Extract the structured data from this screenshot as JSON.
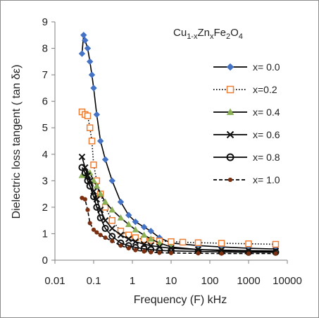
{
  "chart_data": {
    "type": "scatter",
    "xlabel": "Frequency (F) kHz",
    "ylabel": "Dielectric  loss tangent  ( tan δε)",
    "annotation": {
      "base1": "Cu",
      "sub1": "1-x",
      "base2": "Zn",
      "sub2": "x",
      "base3": "Fe",
      "sub3": "2",
      "base4": "O",
      "sub4": "4"
    },
    "x_scale": "log",
    "xlim": [
      0.01,
      10000
    ],
    "ylim": [
      0,
      9
    ],
    "x_ticks": [
      "0.01",
      "0.1",
      "1",
      "10",
      "100",
      "1000",
      "10000"
    ],
    "y_ticks": [
      "0",
      "1",
      "2",
      "3",
      "4",
      "5",
      "6",
      "7",
      "8",
      "9"
    ],
    "grid": false,
    "legend_position": "right",
    "series": [
      {
        "name": "x= 0.0",
        "color": "#4472C4",
        "marker": "diamond",
        "line": "solid",
        "line_color": "#000000",
        "x": [
          0.05,
          0.055,
          0.06,
          0.07,
          0.08,
          0.09,
          0.1,
          0.12,
          0.15,
          0.2,
          0.3,
          0.5,
          0.8,
          1.2,
          2,
          3,
          5,
          10,
          50,
          200,
          1000,
          5000
        ],
        "y": [
          7.8,
          8.5,
          8.3,
          8.0,
          7.5,
          7.0,
          6.5,
          5.5,
          4.5,
          3.8,
          3.0,
          2.2,
          1.7,
          1.45,
          1.25,
          1.1,
          0.85,
          0.65,
          0.55,
          0.5,
          0.45,
          0.42
        ]
      },
      {
        "name": "x=0.2",
        "color": "#ED7D31",
        "marker": "square-open",
        "line": "dotted",
        "line_color": "#000000",
        "x": [
          0.05,
          0.06,
          0.07,
          0.08,
          0.09,
          0.1,
          0.12,
          0.15,
          0.2,
          0.3,
          0.5,
          0.8,
          1.2,
          2,
          3,
          5,
          10,
          20,
          50,
          200,
          1000,
          5000
        ],
        "y": [
          5.6,
          5.5,
          5.45,
          5.0,
          4.5,
          3.6,
          3.0,
          2.5,
          2.0,
          1.5,
          1.1,
          0.95,
          0.85,
          0.78,
          0.75,
          0.72,
          0.7,
          0.68,
          0.66,
          0.64,
          0.62,
          0.6
        ]
      },
      {
        "name": "x= 0.4",
        "color": "#8BB055",
        "marker": "triangle",
        "line": "solid",
        "line_color": "#000000",
        "x": [
          0.05,
          0.06,
          0.07,
          0.08,
          0.1,
          0.12,
          0.15,
          0.2,
          0.3,
          0.5,
          0.8,
          1.2,
          2,
          3,
          5,
          10,
          50,
          200,
          1000,
          5000
        ],
        "y": [
          3.2,
          3.2,
          3.3,
          3.3,
          3.0,
          2.8,
          2.5,
          2.2,
          1.9,
          1.6,
          1.35,
          1.15,
          0.95,
          0.8,
          0.65,
          0.5,
          0.4,
          0.36,
          0.34,
          0.32
        ]
      },
      {
        "name": "x= 0.6",
        "color": "#111111",
        "marker": "x",
        "line": "solid",
        "line_color": "#000000",
        "x": [
          0.05,
          0.06,
          0.07,
          0.08,
          0.1,
          0.12,
          0.15,
          0.2,
          0.3,
          0.5,
          0.8,
          1.2,
          2,
          3,
          5,
          10,
          50,
          200,
          1000,
          5000
        ],
        "y": [
          3.9,
          3.5,
          3.2,
          3.0,
          2.6,
          2.3,
          1.9,
          1.5,
          1.2,
          0.95,
          0.8,
          0.7,
          0.6,
          0.55,
          0.5,
          0.45,
          0.4,
          0.38,
          0.36,
          0.35
        ]
      },
      {
        "name": "x= 0.8",
        "color": "#111111",
        "marker": "circle-open",
        "line": "solid",
        "line_color": "#000000",
        "x": [
          0.05,
          0.06,
          0.07,
          0.08,
          0.1,
          0.12,
          0.15,
          0.2,
          0.3,
          0.5,
          0.8,
          1.2,
          2,
          3,
          5,
          10,
          50,
          200,
          1000,
          5000
        ],
        "y": [
          3.5,
          3.3,
          3.0,
          2.8,
          2.4,
          2.0,
          1.6,
          1.2,
          0.9,
          0.65,
          0.55,
          0.48,
          0.43,
          0.4,
          0.37,
          0.35,
          0.33,
          0.31,
          0.3,
          0.3
        ]
      },
      {
        "name": "x= 1.0",
        "color": "#7A3010",
        "marker": "dot",
        "line": "dashed",
        "line_color": "#000000",
        "x": [
          0.05,
          0.06,
          0.07,
          0.08,
          0.1,
          0.12,
          0.15,
          0.2,
          0.3,
          0.5,
          0.8,
          1.2,
          2,
          3,
          5,
          10,
          50,
          200,
          1000,
          5000
        ],
        "y": [
          2.35,
          2.3,
          1.9,
          1.4,
          1.15,
          1.05,
          0.95,
          0.85,
          0.72,
          0.55,
          0.45,
          0.38,
          0.33,
          0.3,
          0.28,
          0.27,
          0.26,
          0.25,
          0.25,
          0.25
        ]
      }
    ]
  }
}
